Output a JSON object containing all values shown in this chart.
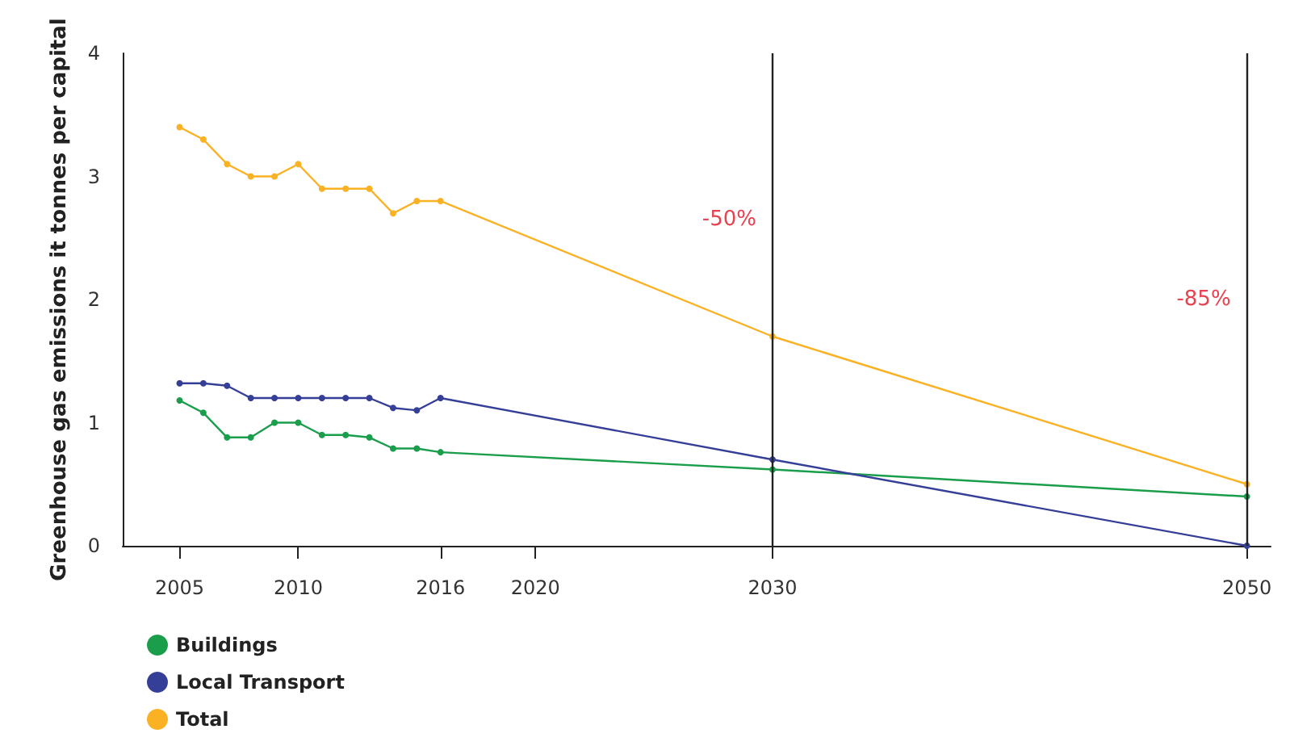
{
  "chart_data": {
    "type": "line",
    "ylabel": "Greenhouse gas emissions it tonnes per capital",
    "x": [
      2005,
      2006,
      2007,
      2008,
      2009,
      2010,
      2011,
      2012,
      2013,
      2014,
      2015,
      2016,
      2030,
      2050
    ],
    "series": [
      {
        "name": "Buildings",
        "color": "#1a9e4b",
        "values": [
          1.18,
          1.08,
          0.88,
          0.88,
          1.0,
          1.0,
          0.9,
          0.9,
          0.88,
          0.79,
          0.79,
          0.76,
          0.62,
          0.4
        ]
      },
      {
        "name": "Local Transport",
        "color": "#353f97",
        "values": [
          1.32,
          1.32,
          1.3,
          1.2,
          1.2,
          1.2,
          1.2,
          1.2,
          1.2,
          1.12,
          1.1,
          1.2,
          0.7,
          0
        ]
      },
      {
        "name": "Total",
        "color": "#fbb124",
        "values": [
          3.4,
          3.3,
          3.1,
          3.0,
          3.0,
          3.1,
          2.9,
          2.9,
          2.9,
          2.7,
          2.8,
          2.8,
          1.7,
          0.5
        ]
      }
    ],
    "xlim": [
      2002.6,
      2051
    ],
    "xticks": [
      2005,
      2010,
      2016,
      2020,
      2030,
      2050
    ],
    "ylim": [
      0,
      4
    ],
    "yticks": [
      0,
      1,
      2,
      3,
      4
    ],
    "ref_lines": [
      {
        "axis": "x",
        "value": 2030,
        "color": "#222222"
      },
      {
        "axis": "x",
        "value": 2050,
        "color": "#222222"
      }
    ],
    "annotations": [
      {
        "text": "-50%",
        "x": 2030,
        "y": 2.65
      },
      {
        "text": "-85%",
        "x": 2050,
        "y": 2
      }
    ],
    "grid": false,
    "legend": "bottom left",
    "marker": "circle",
    "line_style": "solid"
  }
}
